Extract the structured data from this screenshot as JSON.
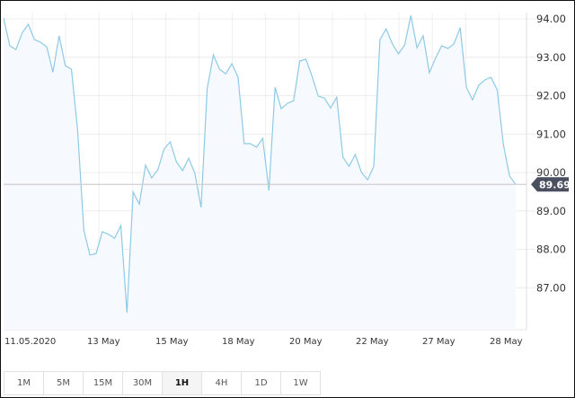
{
  "chart_data": {
    "type": "area",
    "title": "",
    "xlabel": "",
    "ylabel": "",
    "x_tick_labels": [
      "11.05.2020",
      "13 May",
      "15 May",
      "18 May",
      "20 May",
      "22 May",
      "27 May",
      "28 May"
    ],
    "y_ticks": [
      "94.00",
      "93.00",
      "92.00",
      "91.00",
      "90.00",
      "89.00",
      "88.00",
      "87.00"
    ],
    "ylim": [
      86.05,
      94.5
    ],
    "grid": true,
    "current_price": "89.69",
    "line_color": "#8ecae6",
    "fill_color": "#f6f9fd",
    "badge_color": "#4a5060",
    "values": [
      94.02,
      93.3,
      93.2,
      93.63,
      93.86,
      93.46,
      93.39,
      93.27,
      92.61,
      93.56,
      92.78,
      92.69,
      91.1,
      88.5,
      87.85,
      87.89,
      88.46,
      88.39,
      88.29,
      88.62,
      86.35,
      89.49,
      89.18,
      90.19,
      89.86,
      90.07,
      90.61,
      90.8,
      90.28,
      90.05,
      90.37,
      89.98,
      89.09,
      92.18,
      93.06,
      92.69,
      92.57,
      92.83,
      92.48,
      90.75,
      90.75,
      90.66,
      90.89,
      89.53,
      92.22,
      91.66,
      91.8,
      91.87,
      92.9,
      92.95,
      92.5,
      91.99,
      91.94,
      91.68,
      91.96,
      90.4,
      90.16,
      90.47,
      90.0,
      89.81,
      90.16,
      93.46,
      93.74,
      93.35,
      93.09,
      93.32,
      94.09,
      93.25,
      93.56,
      92.6,
      92.97,
      93.3,
      93.23,
      93.35,
      93.77,
      92.22,
      91.89,
      92.27,
      92.41,
      92.48,
      92.15,
      90.73,
      89.91,
      89.69
    ]
  },
  "timeframes": {
    "items": [
      "1M",
      "5M",
      "15M",
      "30M",
      "1H",
      "4H",
      "1D",
      "1W"
    ],
    "selected": "1H"
  }
}
